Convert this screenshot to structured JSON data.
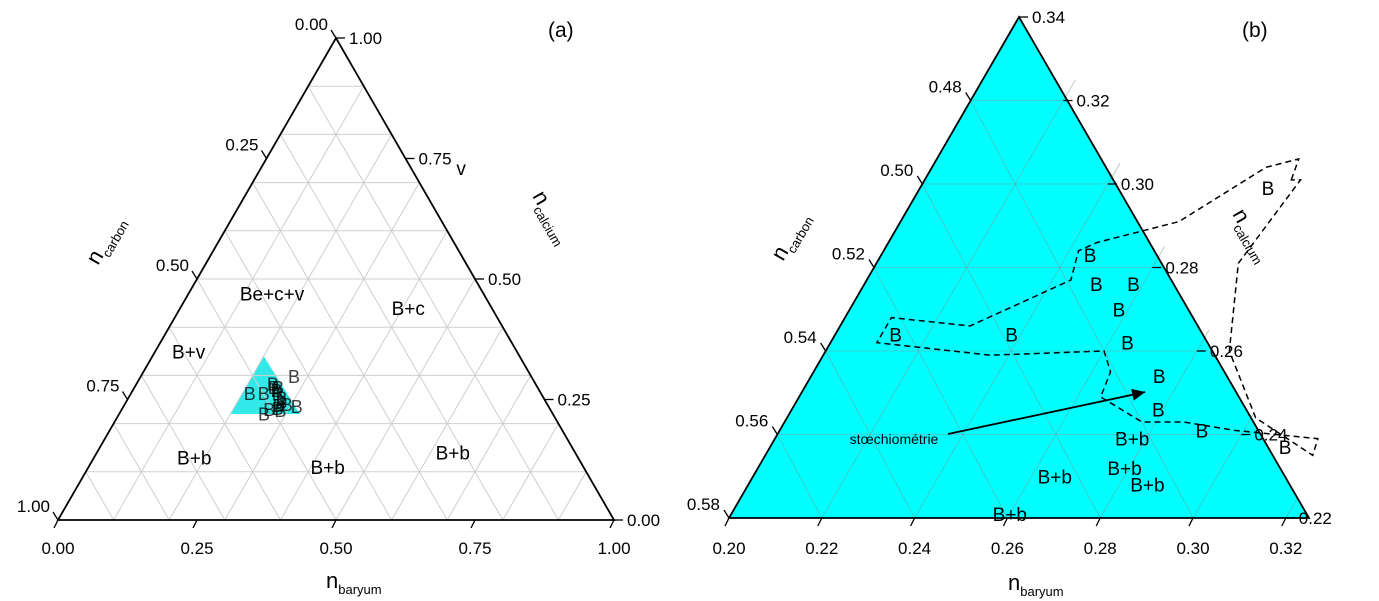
{
  "chart_data": [
    {
      "panel_label": "(a)",
      "type": "scatter",
      "subtype": "ternary",
      "axes": {
        "bottom": {
          "name": "n",
          "sub": "baryum",
          "range": [
            0,
            1
          ],
          "ticks": [
            "0.00",
            "0.25",
            "0.50",
            "0.75",
            "1.00"
          ]
        },
        "right": {
          "name": "n",
          "sub": "calcium",
          "range": [
            0,
            1
          ],
          "ticks": [
            "0.00",
            "0.25",
            "0.50",
            "0.75",
            "1.00"
          ]
        },
        "left": {
          "name": "n",
          "sub": "carbon",
          "range": [
            0,
            1
          ],
          "ticks": [
            "0.00",
            "0.25",
            "0.50",
            "0.75",
            "1.00"
          ]
        }
      },
      "grid": true,
      "regions": [
        {
          "label": "v",
          "baryum": 0.36,
          "calcium": 0.73
        },
        {
          "label": "Be+c+v",
          "baryum": 0.15,
          "calcium": 0.47
        },
        {
          "label": "B+c",
          "baryum": 0.41,
          "calcium": 0.44
        },
        {
          "label": "B+v",
          "baryum": 0.06,
          "calcium": 0.35
        },
        {
          "label": "B+b",
          "baryum": 0.18,
          "calcium": 0.13
        },
        {
          "label": "B+b",
          "baryum": 0.43,
          "calcium": 0.11
        },
        {
          "label": "B+b",
          "baryum": 0.64,
          "calcium": 0.14
        }
      ],
      "zoom_region": {
        "color": "#33e8e8",
        "baryum": [
          0.2,
          0.325
        ],
        "calcium": [
          0.22,
          0.34
        ]
      },
      "points_label": "B"
    },
    {
      "panel_label": "(b)",
      "type": "scatter",
      "subtype": "ternary-zoom",
      "background": "#00ffff",
      "axes": {
        "bottom": {
          "name": "n",
          "sub": "baryum",
          "range": [
            0.2,
            0.325
          ],
          "ticks": [
            "0.20",
            "0.22",
            "0.24",
            "0.26",
            "0.28",
            "0.30",
            "0.32"
          ]
        },
        "right": {
          "name": "n",
          "sub": "calcium",
          "range": [
            0.22,
            0.34
          ],
          "ticks": [
            "0.34",
            "0.32",
            "0.30",
            "0.28",
            "0.26",
            "0.24",
            "0.22"
          ]
        },
        "left": {
          "name": "n",
          "sub": "carbon",
          "range": [
            0.48,
            0.58
          ],
          "ticks": [
            "0.48",
            "0.50",
            "0.52",
            "0.54",
            "0.56",
            "0.58"
          ]
        }
      },
      "grid": true,
      "points": [
        {
          "label": "B",
          "baryum": 0.275,
          "calcium": 0.299
        },
        {
          "label": "B",
          "baryum": 0.245,
          "calcium": 0.283
        },
        {
          "label": "B",
          "baryum": 0.25,
          "calcium": 0.276
        },
        {
          "label": "B",
          "baryum": 0.258,
          "calcium": 0.276
        },
        {
          "label": "B",
          "baryum": 0.258,
          "calcium": 0.27
        },
        {
          "label": "B",
          "baryum": 0.213,
          "calcium": 0.264
        },
        {
          "label": "B",
          "baryum": 0.238,
          "calcium": 0.264
        },
        {
          "label": "B",
          "baryum": 0.264,
          "calcium": 0.262
        },
        {
          "label": "B",
          "baryum": 0.275,
          "calcium": 0.254,
          "highlight": true
        },
        {
          "label": "B",
          "baryum": 0.279,
          "calcium": 0.246
        },
        {
          "label": "B+b",
          "baryum": 0.277,
          "calcium": 0.239
        },
        {
          "label": "B",
          "baryum": 0.291,
          "calcium": 0.241
        },
        {
          "label": "B",
          "baryum": 0.311,
          "calcium": 0.237
        },
        {
          "label": "B+b",
          "baryum": 0.279,
          "calcium": 0.232
        },
        {
          "label": "B+b",
          "baryum": 0.265,
          "calcium": 0.23
        },
        {
          "label": "B+b",
          "baryum": 0.286,
          "calcium": 0.228
        },
        {
          "label": "B+b",
          "baryum": 0.26,
          "calcium": 0.221
        }
      ],
      "stoichiometry_point": {
        "baryum": 0.275,
        "calcium": 0.254
      },
      "annotation": {
        "text": "stœchiométrie",
        "color": "#cc2200"
      },
      "dashed_region": [
        [
          0.279,
          0.301
        ],
        [
          0.278,
          0.306
        ],
        [
          0.272,
          0.304
        ],
        [
          0.26,
          0.291
        ],
        [
          0.245,
          0.286
        ],
        [
          0.242,
          0.284
        ],
        [
          0.244,
          0.277
        ],
        [
          0.228,
          0.266
        ],
        [
          0.21,
          0.268
        ],
        [
          0.21,
          0.262
        ],
        [
          0.236,
          0.259
        ],
        [
          0.26,
          0.26
        ],
        [
          0.264,
          0.255
        ],
        [
          0.265,
          0.249
        ],
        [
          0.277,
          0.243
        ],
        [
          0.286,
          0.243
        ],
        [
          0.298,
          0.241
        ],
        [
          0.317,
          0.239
        ],
        [
          0.318,
          0.235
        ],
        [
          0.301,
          0.244
        ],
        [
          0.287,
          0.26
        ],
        [
          0.278,
          0.281
        ],
        [
          0.281,
          0.301
        ]
      ]
    }
  ]
}
